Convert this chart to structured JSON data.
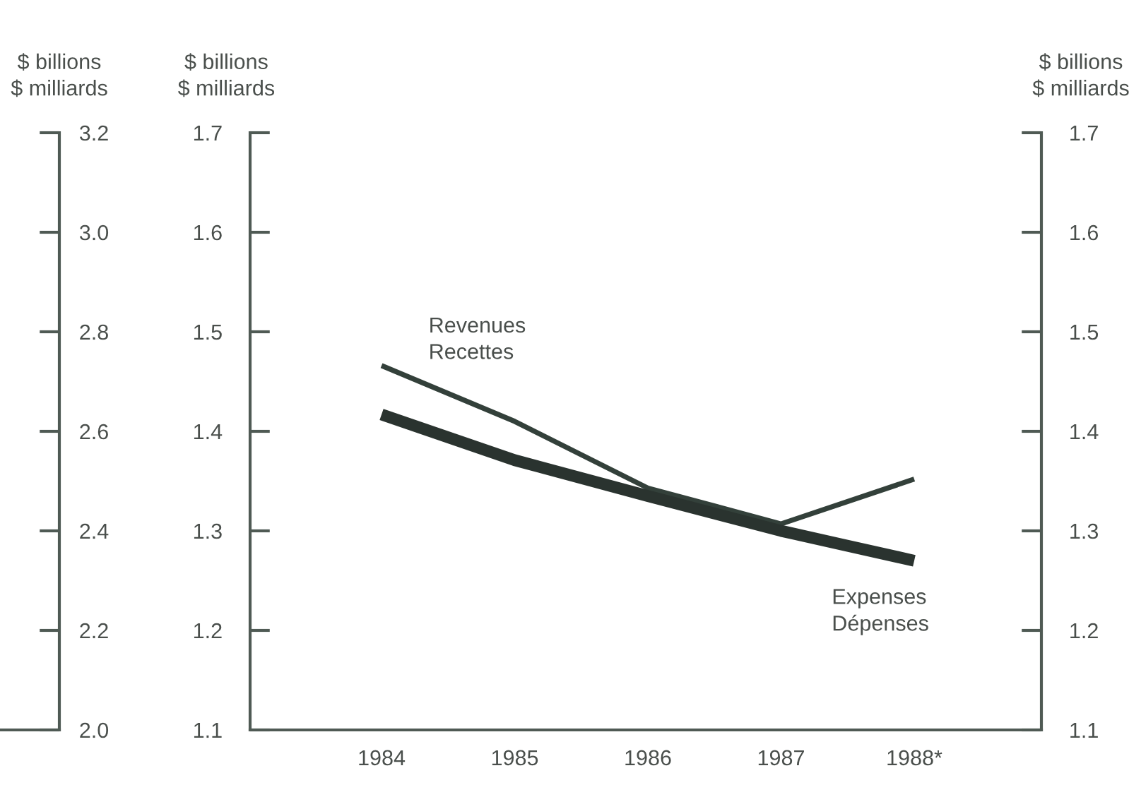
{
  "chart_data": {
    "type": "line",
    "categories": [
      "1984",
      "1985",
      "1986",
      "1987",
      "1988*"
    ],
    "series": [
      {
        "name": "Revenues\nRecettes",
        "color": "#33403a",
        "axis": "y",
        "values": [
          1.466,
          1.41,
          1.343,
          1.307,
          1.352
        ]
      },
      {
        "name": "Expenses\nDépenses",
        "color": "#2a332f",
        "axis": "y",
        "values": [
          1.417,
          1.371,
          1.335,
          1.3,
          1.27
        ]
      }
    ],
    "ylabel": "$ billions\n$ milliards",
    "y2label": "$ billions\n$ milliards",
    "y3label": "$ billions\n$ milliards",
    "ylim": [
      1.1,
      1.7
    ],
    "yticks": [
      1.1,
      1.2,
      1.3,
      1.4,
      1.5,
      1.6,
      1.7
    ],
    "y2lim": [
      1.1,
      1.7
    ],
    "y2ticks": [
      1.1,
      1.2,
      1.3,
      1.4,
      1.5,
      1.6,
      1.7
    ],
    "y3lim": [
      2.0,
      3.2
    ],
    "y3ticks": [
      {
        "value": 2,
        "label": "2.0"
      },
      2.2,
      2.4,
      2.6,
      2.8,
      {
        "value": 3,
        "label": "3.0"
      },
      3.2
    ]
  }
}
